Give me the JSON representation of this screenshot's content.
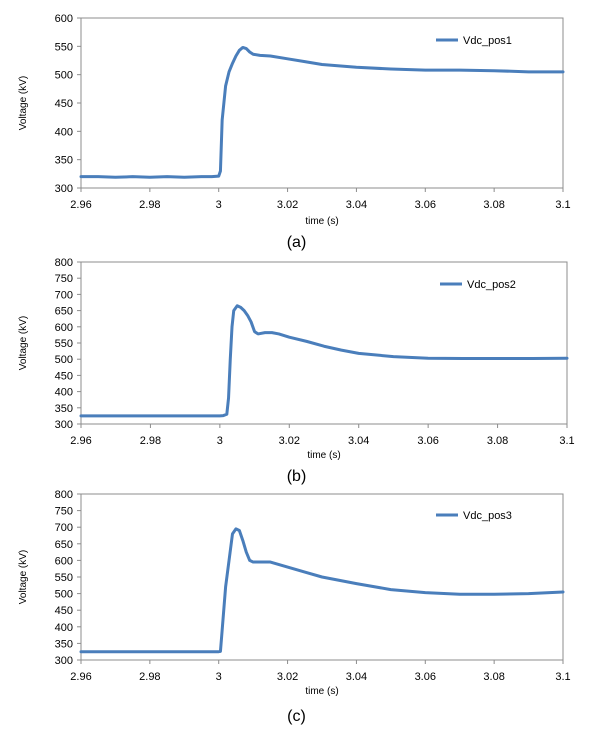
{
  "chart_data": [
    {
      "type": "line",
      "caption": "(a)",
      "xlabel": "time (s)",
      "ylabel": "Voltage (kV)",
      "xlim": [
        2.96,
        3.1
      ],
      "ylim": [
        300,
        600
      ],
      "xticks": [
        "2.96",
        "2.98",
        "3",
        "3.02",
        "3.04",
        "3.06",
        "3.08",
        "3.1"
      ],
      "yticks": [
        "300",
        "350",
        "400",
        "450",
        "500",
        "550",
        "600"
      ],
      "xtick_values": [
        2.96,
        2.98,
        3.0,
        3.02,
        3.04,
        3.06,
        3.08,
        3.1
      ],
      "ytick_values": [
        300,
        350,
        400,
        450,
        500,
        550,
        600
      ],
      "grid": false,
      "legend_position": "top-right",
      "line_color": "#4a7ebb",
      "series": [
        {
          "name": "Vdc_pos1",
          "x": [
            2.96,
            2.965,
            2.97,
            2.975,
            2.98,
            2.985,
            2.99,
            2.995,
            2.998,
            3.0,
            3.0005,
            3.001,
            3.002,
            3.003,
            3.004,
            3.005,
            3.006,
            3.007,
            3.008,
            3.009,
            3.01,
            3.012,
            3.015,
            3.02,
            3.025,
            3.03,
            3.04,
            3.05,
            3.06,
            3.07,
            3.08,
            3.09,
            3.1
          ],
          "y": [
            320,
            320,
            319,
            320,
            319,
            320,
            319,
            320,
            320,
            321,
            330,
            420,
            480,
            505,
            520,
            533,
            543,
            548,
            546,
            540,
            536,
            534,
            533,
            528,
            523,
            518,
            513,
            510,
            508,
            508,
            507,
            505,
            505
          ]
        }
      ]
    },
    {
      "type": "line",
      "caption": "(b)",
      "xlabel": "time (s)",
      "ylabel": "Voltage (kV)",
      "xlim": [
        2.96,
        3.1
      ],
      "ylim": [
        300,
        800
      ],
      "xticks": [
        "2.96",
        "2.98",
        "3",
        "3.02",
        "3.04",
        "3.06",
        "3.08",
        "3.1"
      ],
      "yticks": [
        "300",
        "350",
        "400",
        "450",
        "500",
        "550",
        "600",
        "650",
        "700",
        "750",
        "800"
      ],
      "xtick_values": [
        2.96,
        2.98,
        3.0,
        3.02,
        3.04,
        3.06,
        3.08,
        3.1
      ],
      "ytick_values": [
        300,
        350,
        400,
        450,
        500,
        550,
        600,
        650,
        700,
        750,
        800
      ],
      "grid": false,
      "legend_position": "top-right",
      "line_color": "#4a7ebb",
      "series": [
        {
          "name": "Vdc_pos2",
          "x": [
            2.96,
            2.97,
            2.98,
            2.99,
            3.0,
            3.001,
            3.002,
            3.0025,
            3.003,
            3.0035,
            3.004,
            3.005,
            3.006,
            3.007,
            3.008,
            3.009,
            3.01,
            3.011,
            3.013,
            3.015,
            3.017,
            3.02,
            3.025,
            3.03,
            3.035,
            3.04,
            3.05,
            3.06,
            3.07,
            3.08,
            3.09,
            3.1
          ],
          "y": [
            325,
            325,
            325,
            325,
            325,
            326,
            330,
            380,
            500,
            600,
            650,
            665,
            660,
            650,
            635,
            615,
            585,
            578,
            582,
            582,
            578,
            568,
            555,
            540,
            528,
            518,
            508,
            503,
            502,
            502,
            502,
            503
          ]
        }
      ]
    },
    {
      "type": "line",
      "caption": "(c)",
      "xlabel": "time (s)",
      "ylabel": "Voltage (kV)",
      "xlim": [
        2.96,
        3.1
      ],
      "ylim": [
        300,
        800
      ],
      "xticks": [
        "2.96",
        "2.98",
        "3",
        "3.02",
        "3.04",
        "3.06",
        "3.08",
        "3.1"
      ],
      "yticks": [
        "300",
        "350",
        "400",
        "450",
        "500",
        "550",
        "600",
        "650",
        "700",
        "750",
        "800"
      ],
      "xtick_values": [
        2.96,
        2.98,
        3.0,
        3.02,
        3.04,
        3.06,
        3.08,
        3.1
      ],
      "ytick_values": [
        300,
        350,
        400,
        450,
        500,
        550,
        600,
        650,
        700,
        750,
        800
      ],
      "grid": false,
      "legend_position": "top-right",
      "line_color": "#4a7ebb",
      "series": [
        {
          "name": "Vdc_pos3",
          "x": [
            2.96,
            2.97,
            2.98,
            2.99,
            3.0,
            3.0005,
            3.001,
            3.002,
            3.003,
            3.004,
            3.005,
            3.006,
            3.007,
            3.008,
            3.009,
            3.01,
            3.012,
            3.015,
            3.02,
            3.025,
            3.03,
            3.04,
            3.05,
            3.06,
            3.07,
            3.08,
            3.09,
            3.1
          ],
          "y": [
            325,
            325,
            325,
            325,
            325,
            326,
            390,
            520,
            600,
            680,
            695,
            690,
            660,
            625,
            600,
            595,
            595,
            595,
            580,
            565,
            550,
            530,
            512,
            503,
            498,
            498,
            500,
            505
          ]
        }
      ]
    }
  ]
}
